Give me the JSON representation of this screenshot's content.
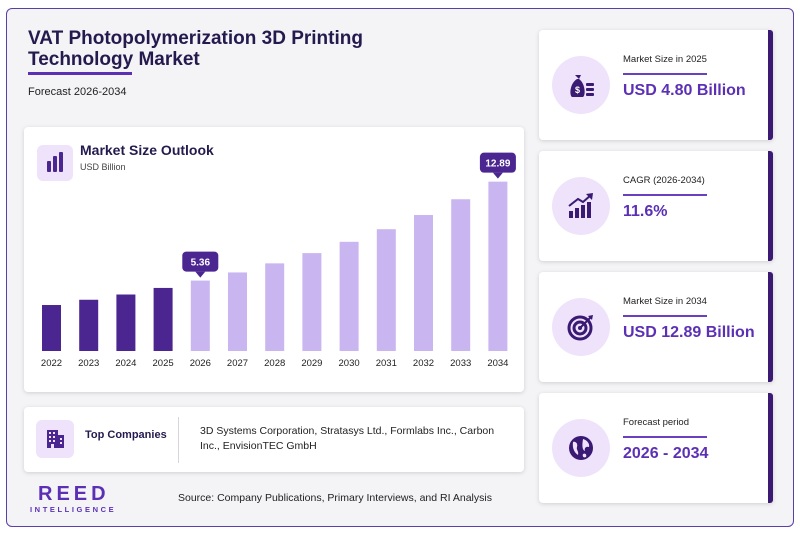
{
  "header": {
    "title": "VAT Photopolymerization 3D Printing Technology Market",
    "subtitle": "Forecast 2026-2034"
  },
  "chart_section": {
    "title": "Market Size Outlook",
    "unit": "USD Billion"
  },
  "chart_data": {
    "type": "bar",
    "title": "Market Size Outlook",
    "ylabel": "USD Billion",
    "categories": [
      "2022",
      "2023",
      "2024",
      "2025",
      "2026",
      "2027",
      "2028",
      "2029",
      "2030",
      "2031",
      "2032",
      "2033",
      "2034"
    ],
    "values": [
      3.5,
      3.9,
      4.3,
      4.8,
      5.36,
      5.98,
      6.67,
      7.45,
      8.31,
      9.27,
      10.35,
      11.55,
      12.89
    ],
    "historical_color": "#4b2590",
    "forecast_color": "#c9b6f1",
    "callouts": [
      {
        "category": "2026",
        "label": "5.36"
      },
      {
        "category": "2034",
        "label": "12.89"
      }
    ]
  },
  "companies": {
    "label": "Top Companies",
    "text": "3D Systems Corporation, Stratasys Ltd., Formlabs Inc., Carbon Inc., EnvisionTEC GmbH"
  },
  "stats": [
    {
      "label": "Market Size in 2025",
      "value": "USD 4.80 Billion",
      "icon": "money-bag-icon"
    },
    {
      "label": "CAGR (2026-2034)",
      "value": "11.6%",
      "icon": "growth-chart-icon"
    },
    {
      "label": "Market Size in 2034",
      "value": "USD 12.89 Billion",
      "icon": "target-icon"
    },
    {
      "label": "Forecast period",
      "value": "2026 - 2034",
      "icon": "globe-icon"
    }
  ],
  "logo": {
    "main": "REED",
    "sub": "INTELLIGENCE"
  },
  "source": "Source: Company Publications, Primary Interviews, and RI Analysis",
  "colors": {
    "accent": "#5b30b5",
    "dark": "#241a4e",
    "icon_bg": "#efe3fb"
  }
}
